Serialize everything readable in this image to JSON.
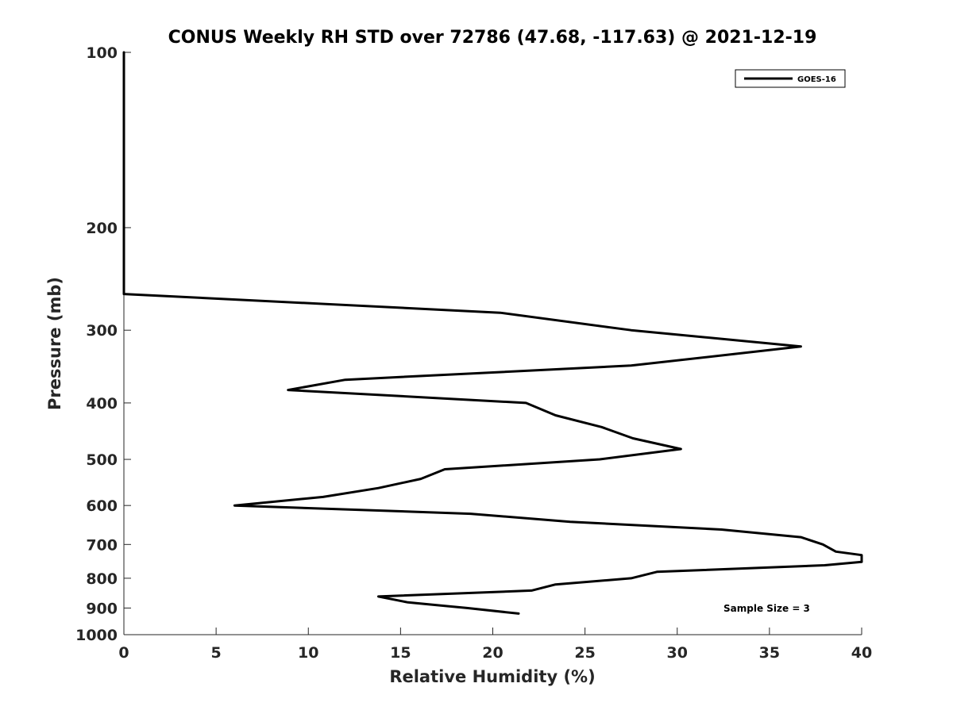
{
  "chart_data": {
    "type": "line",
    "title": "CONUS Weekly RH STD over 72786 (47.68, -117.63) @ 2021-12-19",
    "xlabel": "Relative Humidity (%)",
    "ylabel": "Pressure (mb)",
    "xlim": [
      0,
      40
    ],
    "ylim": [
      100,
      1000
    ],
    "yscale": "log",
    "y_reversed": true,
    "grid": false,
    "xticks": [
      0,
      5,
      10,
      15,
      20,
      25,
      30,
      35,
      40
    ],
    "xtick_labels": [
      "0",
      "5",
      "10",
      "15",
      "20",
      "25",
      "30",
      "35",
      "40"
    ],
    "yticks": [
      100,
      200,
      300,
      400,
      500,
      600,
      700,
      800,
      900,
      1000
    ],
    "ytick_labels": [
      "100",
      "200",
      "300",
      "400",
      "500",
      "600",
      "700",
      "800",
      "900",
      "1000"
    ],
    "legend_position": "top-right",
    "series": [
      {
        "name": "GOES-16",
        "color": "#000000",
        "x": [
          0,
          0,
          0,
          20.4,
          27.5,
          36.7,
          27.5,
          12,
          8.9,
          21.8,
          23.4,
          25.9,
          27.6,
          30.2,
          25.8,
          17.4,
          16.1,
          13.8,
          10.8,
          6,
          18.8,
          24.2,
          32.4,
          36.7,
          37.9,
          38.6,
          40,
          40,
          38,
          28.9,
          27.5,
          23.4,
          22.1,
          13.8,
          15.4,
          18.6,
          21.4
        ],
        "y": [
          100,
          200,
          260,
          280,
          300,
          320,
          345,
          365,
          380,
          400,
          420,
          440,
          460,
          480,
          500,
          520,
          540,
          560,
          580,
          600,
          620,
          640,
          660,
          680,
          700,
          720,
          730,
          750,
          760,
          780,
          800,
          820,
          840,
          860,
          880,
          900,
          920
        ]
      }
    ],
    "annotations": [
      "Sample Size = 3"
    ]
  }
}
